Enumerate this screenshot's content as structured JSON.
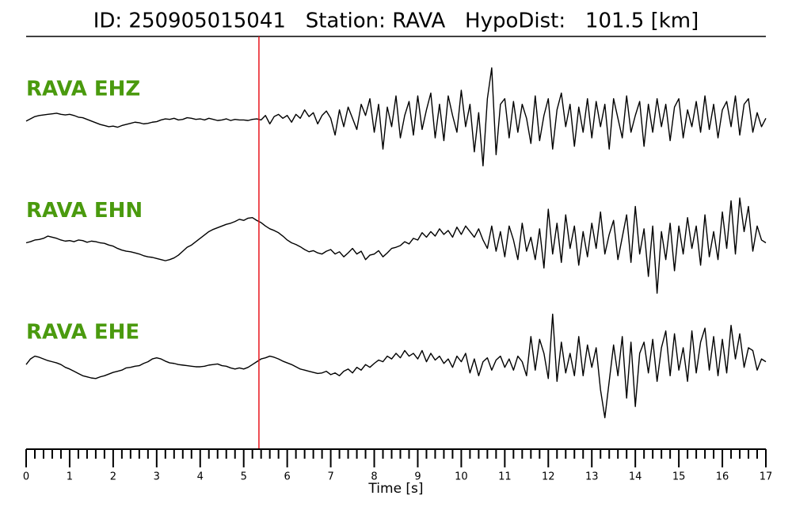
{
  "chart_data": {
    "type": "line",
    "title": "ID: 250905015041   Station: RAVA   HypoDist:   101.5 [km]",
    "xlabel": "Time [s]",
    "label_color": "#4a9a0e",
    "xlim": [
      0,
      17
    ],
    "xticks": [
      0,
      1,
      2,
      3,
      4,
      5,
      6,
      7,
      8,
      9,
      10,
      11,
      12,
      13,
      14,
      15,
      16,
      17
    ],
    "minor_ticks_per_major": 5,
    "ylim": [
      -1,
      1
    ],
    "vlines": [
      {
        "x": 5.35,
        "color": "#e8141c"
      }
    ],
    "x": [
      0,
      0.1,
      0.2,
      0.3,
      0.4,
      0.5,
      0.6,
      0.7,
      0.8,
      0.9,
      1,
      1.1,
      1.2,
      1.3,
      1.4,
      1.5,
      1.6,
      1.7,
      1.8,
      1.9,
      2,
      2.1,
      2.2,
      2.3,
      2.4,
      2.5,
      2.6,
      2.7,
      2.8,
      2.9,
      3,
      3.1,
      3.2,
      3.3,
      3.4,
      3.5,
      3.6,
      3.7,
      3.8,
      3.9,
      4,
      4.1,
      4.2,
      4.3,
      4.4,
      4.5,
      4.6,
      4.7,
      4.8,
      4.9,
      5,
      5.1,
      5.2,
      5.3,
      5.4,
      5.5,
      5.6,
      5.7,
      5.8,
      5.9,
      6,
      6.1,
      6.2,
      6.3,
      6.4,
      6.5,
      6.6,
      6.7,
      6.8,
      6.9,
      7,
      7.1,
      7.2,
      7.3,
      7.4,
      7.5,
      7.6,
      7.7,
      7.8,
      7.9,
      8,
      8.1,
      8.2,
      8.3,
      8.4,
      8.5,
      8.6,
      8.7,
      8.8,
      8.9,
      9,
      9.1,
      9.2,
      9.3,
      9.4,
      9.5,
      9.6,
      9.7,
      9.8,
      9.9,
      10,
      10.1,
      10.2,
      10.3,
      10.4,
      10.5,
      10.6,
      10.7,
      10.8,
      10.9,
      11,
      11.1,
      11.2,
      11.3,
      11.4,
      11.5,
      11.6,
      11.7,
      11.8,
      11.9,
      12,
      12.1,
      12.2,
      12.3,
      12.4,
      12.5,
      12.6,
      12.7,
      12.8,
      12.9,
      13,
      13.1,
      13.2,
      13.3,
      13.4,
      13.5,
      13.6,
      13.7,
      13.8,
      13.9,
      14,
      14.1,
      14.2,
      14.3,
      14.4,
      14.5,
      14.6,
      14.7,
      14.8,
      14.9,
      15,
      15.1,
      15.2,
      15.3,
      15.4,
      15.5,
      15.6,
      15.7,
      15.8,
      15.9,
      16,
      16.1,
      16.2,
      16.3,
      16.4,
      16.5,
      16.6,
      16.7,
      16.8,
      16.9,
      17
    ],
    "series": [
      {
        "name": "RAVA EHZ",
        "color": "#000000",
        "values": [
          0,
          0.04,
          0.08,
          0.1,
          0.11,
          0.12,
          0.13,
          0.14,
          0.12,
          0.11,
          0.12,
          0.1,
          0.07,
          0.06,
          0.03,
          0,
          -0.03,
          -0.06,
          -0.08,
          -0.1,
          -0.09,
          -0.11,
          -0.08,
          -0.06,
          -0.04,
          -0.02,
          -0.03,
          -0.05,
          -0.04,
          -0.02,
          -0.01,
          0.02,
          0.04,
          0.03,
          0.05,
          0.02,
          0.03,
          0.06,
          0.05,
          0.03,
          0.04,
          0.02,
          0.05,
          0.03,
          0.01,
          0.02,
          0.04,
          0.01,
          0.03,
          0.02,
          0.02,
          0.01,
          0.03,
          0.04,
          0.02,
          0.1,
          -0.05,
          0.08,
          0.12,
          0.05,
          0.1,
          -0.02,
          0.12,
          0.05,
          0.2,
          0.08,
          0.15,
          -0.05,
          0.1,
          0.18,
          0.05,
          -0.25,
          0.2,
          -0.1,
          0.25,
          0.05,
          -0.15,
          0.3,
          0.1,
          0.4,
          -0.2,
          0.3,
          -0.5,
          0.25,
          -0.1,
          0.45,
          -0.3,
          0.1,
          0.35,
          -0.25,
          0.45,
          -0.15,
          0.2,
          0.5,
          -0.3,
          0.3,
          -0.35,
          0.45,
          0.1,
          -0.2,
          0.55,
          -0.1,
          0.3,
          -0.55,
          0.15,
          -0.8,
          0.4,
          0.95,
          -0.6,
          0.3,
          0.4,
          -0.3,
          0.35,
          -0.2,
          0.3,
          0.05,
          -0.4,
          0.45,
          -0.35,
          0.1,
          0.4,
          -0.5,
          0.2,
          0.5,
          -0.1,
          0.3,
          -0.45,
          0.25,
          -0.2,
          0.4,
          -0.3,
          0.35,
          -0.1,
          0.3,
          -0.5,
          0.4,
          0.05,
          -0.3,
          0.45,
          -0.2,
          0.1,
          0.35,
          -0.45,
          0.3,
          -0.2,
          0.4,
          -0.1,
          0.3,
          -0.35,
          0.25,
          0.4,
          -0.3,
          0.2,
          -0.1,
          0.35,
          -0.2,
          0.45,
          -0.15,
          0.3,
          -0.3,
          0.2,
          0.35,
          -0.1,
          0.45,
          -0.25,
          0.3,
          0.4,
          -0.2,
          0.15,
          -0.1,
          0.05
        ]
      },
      {
        "name": "RAVA EHN",
        "color": "#000000",
        "values": [
          0,
          0.02,
          0.05,
          0.06,
          0.08,
          0.12,
          0.1,
          0.08,
          0.05,
          0.03,
          0.04,
          0.02,
          0.05,
          0.04,
          0.01,
          0.03,
          0.02,
          0,
          -0.01,
          -0.04,
          -0.06,
          -0.1,
          -0.13,
          -0.15,
          -0.16,
          -0.18,
          -0.2,
          -0.23,
          -0.25,
          -0.26,
          -0.28,
          -0.3,
          -0.32,
          -0.3,
          -0.27,
          -0.22,
          -0.15,
          -0.08,
          -0.04,
          0.02,
          0.08,
          0.14,
          0.2,
          0.24,
          0.27,
          0.3,
          0.33,
          0.35,
          0.38,
          0.42,
          0.4,
          0.44,
          0.45,
          0.4,
          0.36,
          0.3,
          0.25,
          0.22,
          0.18,
          0.12,
          0.05,
          0,
          -0.03,
          -0.07,
          -0.12,
          -0.16,
          -0.14,
          -0.18,
          -0.2,
          -0.15,
          -0.12,
          -0.2,
          -0.16,
          -0.25,
          -0.18,
          -0.1,
          -0.2,
          -0.15,
          -0.3,
          -0.22,
          -0.2,
          -0.14,
          -0.25,
          -0.18,
          -0.1,
          -0.08,
          -0.05,
          0.02,
          -0.02,
          0.08,
          0.05,
          0.18,
          0.1,
          0.2,
          0.12,
          0.25,
          0.15,
          0.22,
          0.1,
          0.28,
          0.15,
          0.3,
          0.2,
          0.1,
          0.25,
          0.05,
          -0.1,
          0.3,
          -0.15,
          0.2,
          -0.25,
          0.3,
          0.05,
          -0.3,
          0.35,
          -0.15,
          0.1,
          -0.3,
          0.25,
          -0.45,
          0.6,
          -0.2,
          0.35,
          -0.35,
          0.5,
          -0.1,
          0.3,
          -0.4,
          0.2,
          -0.25,
          0.35,
          -0.1,
          0.55,
          -0.2,
          0.15,
          0.4,
          -0.3,
          0.1,
          0.5,
          -0.35,
          0.65,
          -0.2,
          0.25,
          -0.6,
          0.3,
          -0.9,
          0.2,
          -0.3,
          0.35,
          -0.5,
          0.3,
          -0.2,
          0.45,
          -0.1,
          0.3,
          -0.4,
          0.5,
          -0.25,
          0.2,
          -0.3,
          0.55,
          -0.1,
          0.75,
          -0.2,
          0.8,
          0.2,
          0.65,
          -0.15,
          0.3,
          0.05,
          0
        ]
      },
      {
        "name": "RAVA EHE",
        "color": "#000000",
        "values": [
          0,
          0.1,
          0.15,
          0.13,
          0.1,
          0.07,
          0.05,
          0.03,
          0,
          -0.05,
          -0.08,
          -0.12,
          -0.16,
          -0.2,
          -0.22,
          -0.24,
          -0.25,
          -0.22,
          -0.2,
          -0.17,
          -0.14,
          -0.12,
          -0.1,
          -0.06,
          -0.05,
          -0.03,
          -0.02,
          0.02,
          0.05,
          0.1,
          0.12,
          0.1,
          0.06,
          0.03,
          0.02,
          0,
          -0.01,
          -0.02,
          -0.03,
          -0.04,
          -0.04,
          -0.03,
          -0.01,
          0,
          0.01,
          -0.02,
          -0.03,
          -0.06,
          -0.08,
          -0.06,
          -0.08,
          -0.05,
          0,
          0.05,
          0.1,
          0.12,
          0.15,
          0.13,
          0.1,
          0.06,
          0.03,
          0,
          -0.04,
          -0.08,
          -0.1,
          -0.12,
          -0.14,
          -0.16,
          -0.15,
          -0.12,
          -0.18,
          -0.15,
          -0.2,
          -0.12,
          -0.08,
          -0.15,
          -0.05,
          -0.1,
          0,
          -0.05,
          0.02,
          0.08,
          0.05,
          0.15,
          0.1,
          0.2,
          0.12,
          0.25,
          0.15,
          0.2,
          0.1,
          0.25,
          0.05,
          0.2,
          0.08,
          0.15,
          0.02,
          0.1,
          -0.05,
          0.15,
          0.05,
          0.2,
          -0.15,
          0.1,
          -0.2,
          0.05,
          0.12,
          -0.1,
          0.08,
          0.15,
          -0.05,
          0.1,
          -0.1,
          0.15,
          0.05,
          -0.2,
          0.5,
          -0.1,
          0.45,
          0.2,
          -0.25,
          0.9,
          -0.3,
          0.4,
          -0.15,
          0.2,
          -0.2,
          0.5,
          -0.2,
          0.35,
          -0.05,
          0.3,
          -0.45,
          -0.95,
          -0.3,
          0.35,
          -0.2,
          0.5,
          -0.6,
          0.4,
          -0.75,
          0.2,
          0.4,
          -0.15,
          0.45,
          -0.3,
          0.3,
          0.6,
          -0.2,
          0.55,
          -0.1,
          0.3,
          -0.3,
          0.6,
          -0.15,
          0.4,
          0.65,
          -0.1,
          0.5,
          -0.2,
          0.45,
          -0.15,
          0.7,
          0.1,
          0.55,
          -0.05,
          0.3,
          0.25,
          -0.1,
          0.1,
          0.05
        ]
      }
    ]
  }
}
